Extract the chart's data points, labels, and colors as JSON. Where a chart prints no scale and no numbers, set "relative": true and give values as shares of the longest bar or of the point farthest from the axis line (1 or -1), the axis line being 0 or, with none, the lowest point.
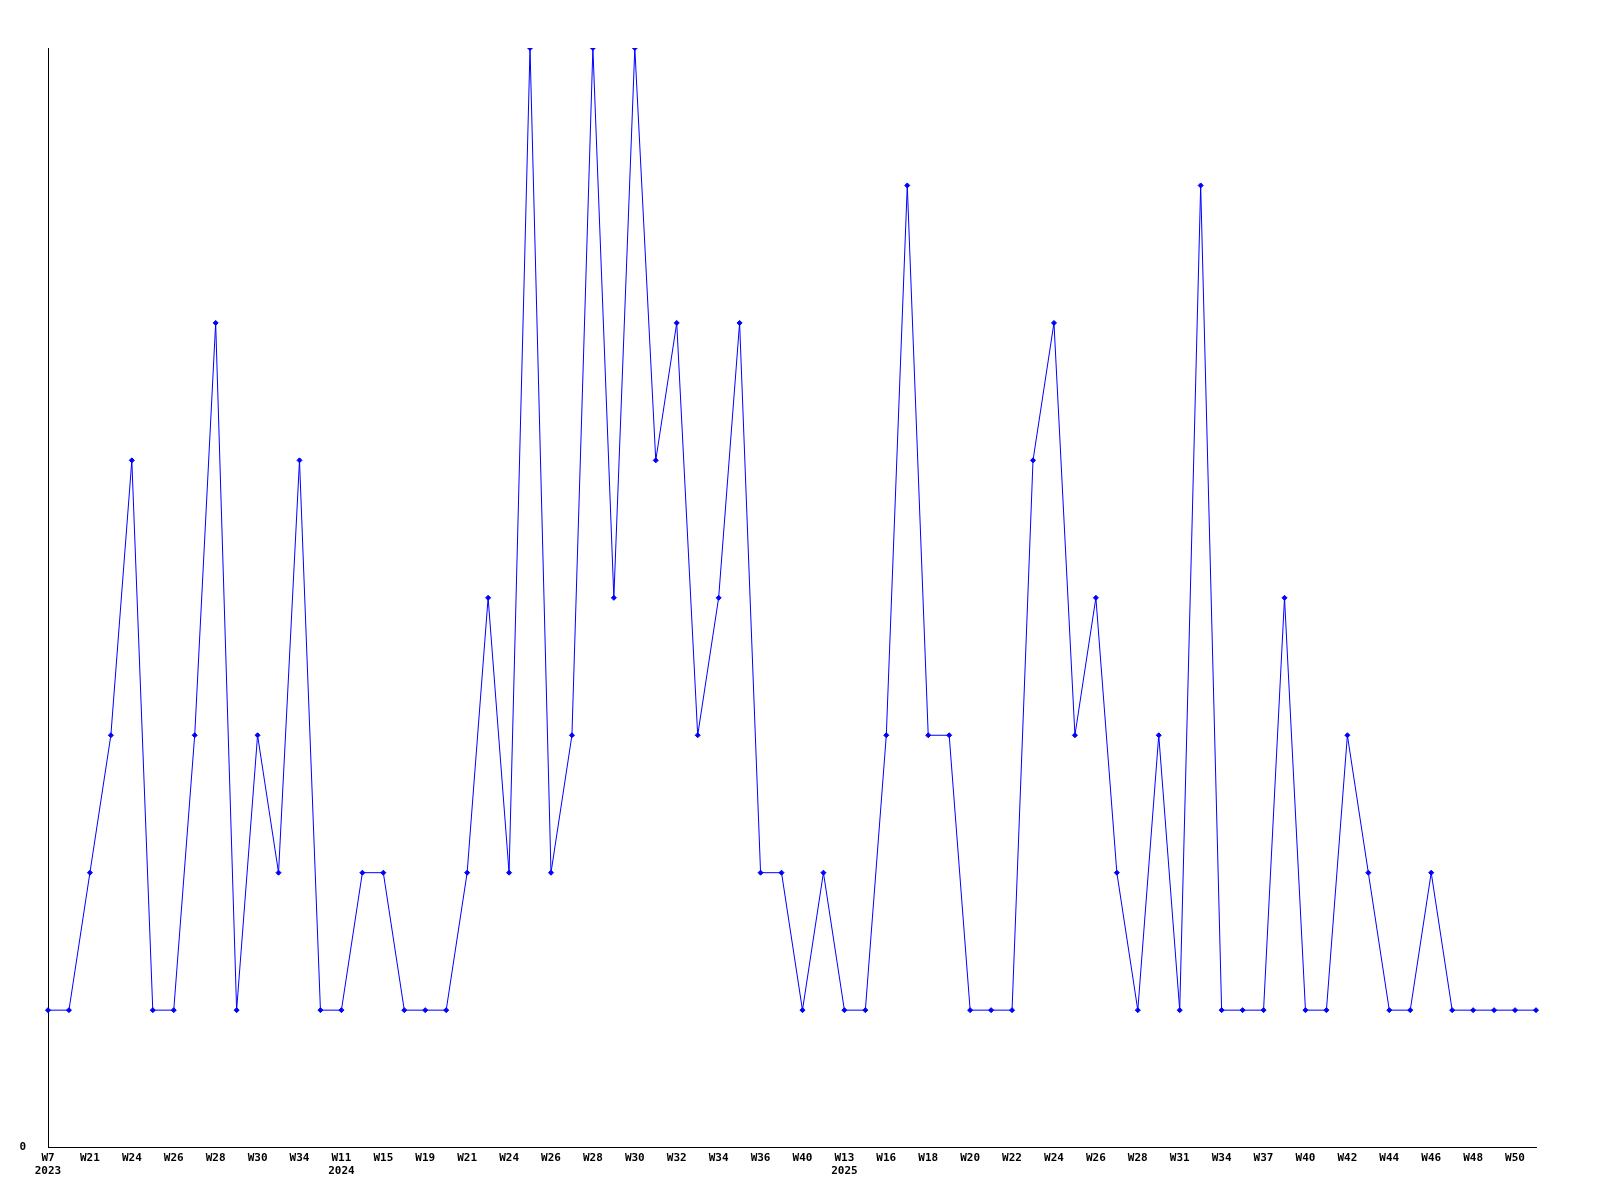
{
  "chart_data": {
    "type": "line",
    "relative": true,
    "categories": [
      "W7\n2023",
      null,
      "W21",
      null,
      "W24",
      null,
      "W26",
      null,
      "W28",
      null,
      "W30",
      null,
      "W34",
      null,
      "W11\n2024",
      null,
      "W15",
      null,
      "W19",
      null,
      "W21",
      null,
      "W24",
      null,
      "W26",
      null,
      "W28",
      null,
      "W30",
      null,
      "W32",
      null,
      "W34",
      null,
      "W36",
      null,
      "W40",
      null,
      "W13\n2025",
      null,
      "W16",
      null,
      "W18",
      null,
      "W20",
      null,
      "W22",
      null,
      "W24",
      null,
      "W26",
      null,
      "W28",
      null,
      "W31",
      null,
      "W34",
      null,
      "W37",
      null,
      "W40",
      null,
      "W42",
      null,
      "W44",
      null,
      "W46",
      null,
      "W48",
      null,
      "W50",
      null
    ],
    "series": [
      {
        "color": "#0000ff",
        "values": [
          0.125,
          0.125,
          0.25,
          0.375,
          0.625,
          0.125,
          0.125,
          0.375,
          0.75,
          0.125,
          0.375,
          0.25,
          0.625,
          0.125,
          0.125,
          0.25,
          0.25,
          0.125,
          0.125,
          0.125,
          0.25,
          0.5,
          0.25,
          1,
          0.25,
          0.375,
          1,
          0.5,
          1,
          0.625,
          0.75,
          0.375,
          0.5,
          0.75,
          0.25,
          0.25,
          0.125,
          0.25,
          0.125,
          0.125,
          0.375,
          0.875,
          0.375,
          0.375,
          0.125,
          0.125,
          0.125,
          0.625,
          0.75,
          0.375,
          0.5,
          0.25,
          0.125,
          0.375,
          0.125,
          0.875,
          0.125,
          0.125,
          0.125,
          0.5,
          0.125,
          0.125,
          0.375,
          0.25,
          0.125,
          0.125,
          0.25,
          0.125,
          0.125,
          0.125,
          0.125,
          0.125
        ]
      }
    ],
    "annotations": [
      "0"
    ],
    "grid": false,
    "legend": false,
    "marker": "diamond",
    "line_style": "solid"
  }
}
